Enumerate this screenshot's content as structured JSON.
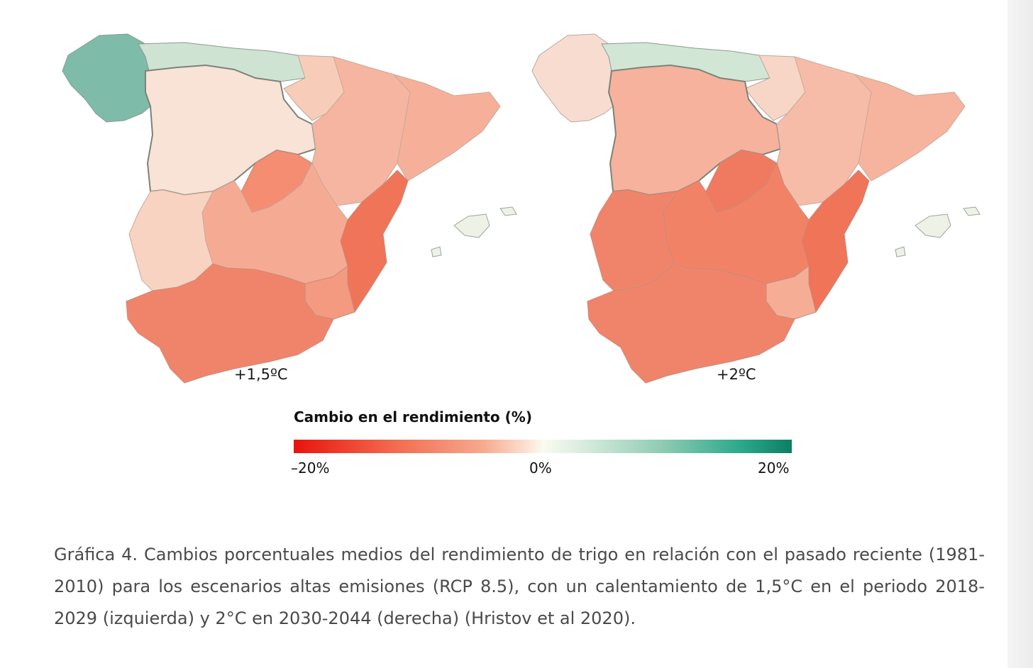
{
  "maps": [
    {
      "scenario_label": "+1,5ºC"
    },
    {
      "scenario_label": "+2ºC"
    }
  ],
  "legend": {
    "title": "Cambio en el rendimiento (%)",
    "min_label": "–20%",
    "mid_label": "0%",
    "max_label": "20%",
    "colors": [
      "#e8140c",
      "#f26a4e",
      "#f7a98e",
      "#fbe3d4",
      "#fbfaf0",
      "#d9ecdf",
      "#8fcbb3",
      "#2aa88a",
      "#0e7e64"
    ]
  },
  "caption": "Gráfica 4. Cambios porcentuales medios del rendimiento de trigo en relación con el pasado reciente (1981-2010) para los escenarios altas emisiones (RCP 8.5), con un calentamiento de 1,5°C en el periodo 2018-2029 (izquierda) y 2°C en 2030-2044 (derecha) (Hristov et al 2020)."
}
